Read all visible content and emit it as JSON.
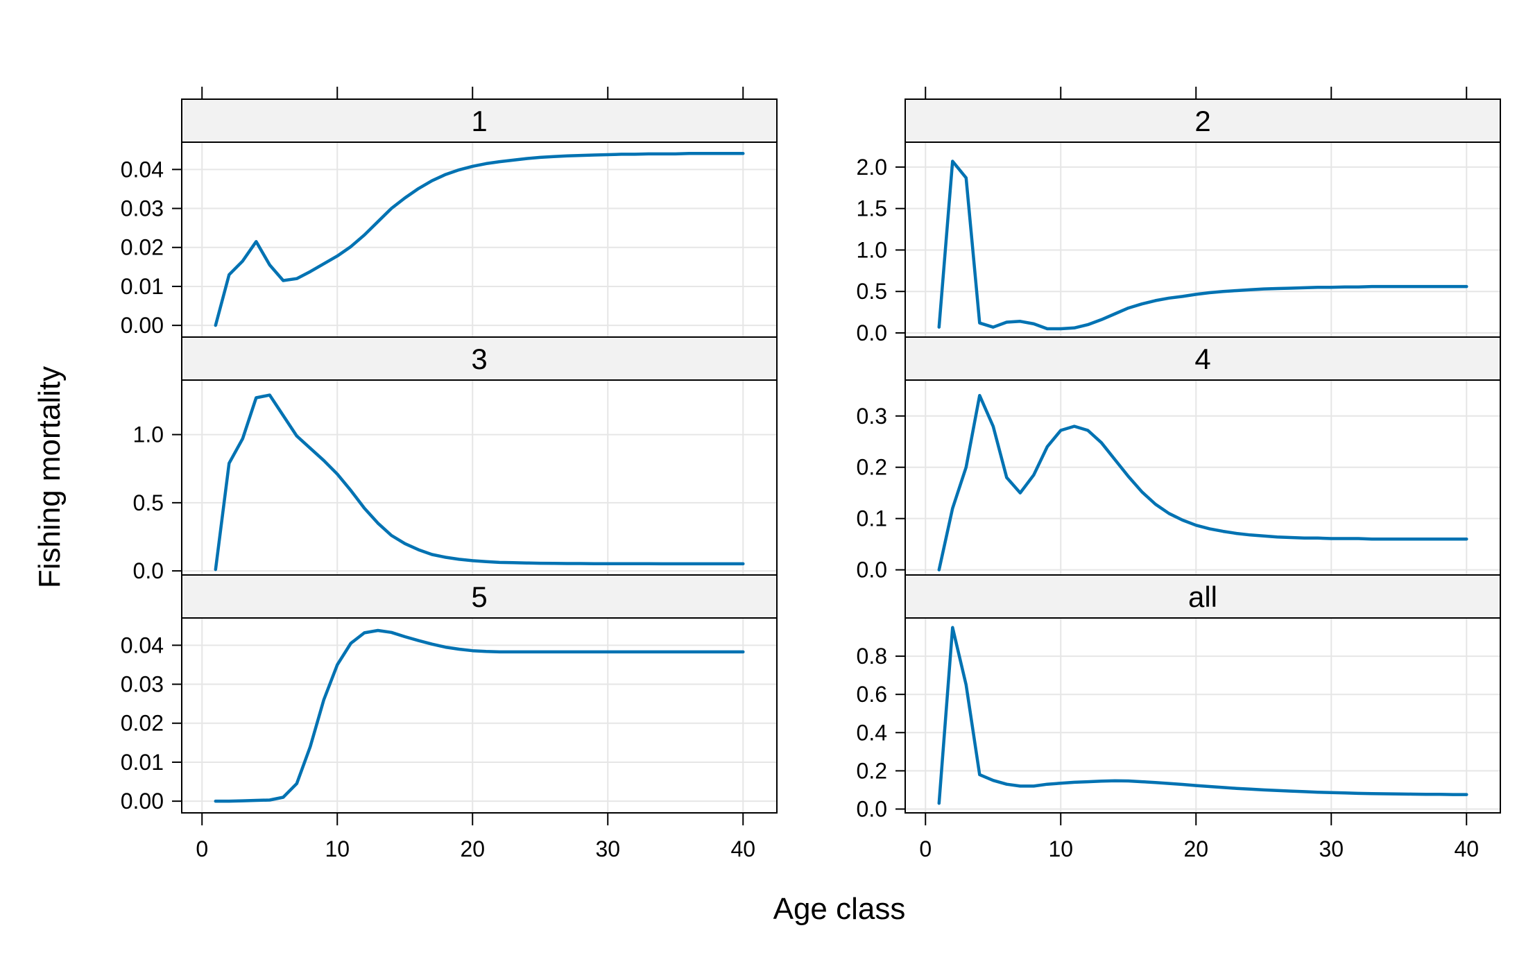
{
  "chart_data": {
    "type": "line",
    "layout": "lattice 2 columns x 3 rows",
    "xlabel": "Age class",
    "ylabel": "Fishing mortality",
    "xlim": [
      -1.5,
      42.5
    ],
    "x_ticks": [
      0,
      10,
      20,
      30,
      40
    ],
    "grid": true,
    "line_color": "#0072B2",
    "grid_color": "#e6e6e6",
    "strip_color": "#f2f2f2",
    "panels": [
      {
        "strip": "1",
        "ylim": [
          -0.003,
          0.047
        ],
        "y_ticks": [
          0.0,
          0.01,
          0.02,
          0.03,
          0.04
        ],
        "y_tick_labels": [
          "0.00",
          "0.01",
          "0.02",
          "0.03",
          "0.04"
        ],
        "x": [
          1,
          2,
          3,
          4,
          5,
          6,
          7,
          8,
          9,
          10,
          11,
          12,
          13,
          14,
          15,
          16,
          17,
          18,
          19,
          20,
          21,
          22,
          23,
          24,
          25,
          26,
          27,
          28,
          29,
          30,
          31,
          32,
          33,
          34,
          35,
          36,
          37,
          38,
          39,
          40
        ],
        "y": [
          0.0,
          0.013,
          0.0165,
          0.0215,
          0.0155,
          0.0115,
          0.012,
          0.0138,
          0.0158,
          0.0178,
          0.0202,
          0.0232,
          0.0266,
          0.03,
          0.0327,
          0.0351,
          0.0371,
          0.0387,
          0.0399,
          0.0408,
          0.0415,
          0.042,
          0.0424,
          0.0428,
          0.0431,
          0.0433,
          0.0435,
          0.0436,
          0.0437,
          0.0438,
          0.0439,
          0.0439,
          0.044,
          0.044,
          0.044,
          0.0441,
          0.0441,
          0.0441,
          0.0441,
          0.0441
        ]
      },
      {
        "strip": "2",
        "ylim": [
          -0.05,
          2.3
        ],
        "y_ticks": [
          0.0,
          0.5,
          1.0,
          1.5,
          2.0
        ],
        "y_tick_labels": [
          "0.0",
          "0.5",
          "1.0",
          "1.5",
          "2.0"
        ],
        "x": [
          1,
          2,
          3,
          4,
          5,
          6,
          7,
          8,
          9,
          10,
          11,
          12,
          13,
          14,
          15,
          16,
          17,
          18,
          19,
          20,
          21,
          22,
          23,
          24,
          25,
          26,
          27,
          28,
          29,
          30,
          31,
          32,
          33,
          34,
          35,
          36,
          37,
          38,
          39,
          40
        ],
        "y": [
          0.07,
          2.07,
          1.87,
          0.12,
          0.07,
          0.13,
          0.14,
          0.11,
          0.05,
          0.05,
          0.06,
          0.1,
          0.16,
          0.23,
          0.3,
          0.35,
          0.39,
          0.42,
          0.44,
          0.465,
          0.485,
          0.5,
          0.51,
          0.52,
          0.53,
          0.535,
          0.54,
          0.545,
          0.55,
          0.55,
          0.555,
          0.555,
          0.56,
          0.56,
          0.56,
          0.56,
          0.56,
          0.56,
          0.56,
          0.56
        ]
      },
      {
        "strip": "3",
        "ylim": [
          -0.03,
          1.4
        ],
        "y_ticks": [
          0.0,
          0.5,
          1.0
        ],
        "y_tick_labels": [
          "0.0",
          "0.5",
          "1.0"
        ],
        "x": [
          1,
          2,
          3,
          4,
          5,
          6,
          7,
          8,
          9,
          10,
          11,
          12,
          13,
          14,
          15,
          16,
          17,
          18,
          19,
          20,
          21,
          22,
          23,
          24,
          25,
          26,
          27,
          28,
          29,
          30,
          31,
          32,
          33,
          34,
          35,
          36,
          37,
          38,
          39,
          40
        ],
        "y": [
          0.01,
          0.79,
          0.97,
          1.27,
          1.29,
          1.14,
          0.99,
          0.9,
          0.81,
          0.71,
          0.59,
          0.46,
          0.35,
          0.26,
          0.2,
          0.155,
          0.12,
          0.1,
          0.085,
          0.075,
          0.068,
          0.062,
          0.06,
          0.058,
          0.056,
          0.055,
          0.054,
          0.054,
          0.053,
          0.053,
          0.053,
          0.053,
          0.053,
          0.052,
          0.052,
          0.052,
          0.052,
          0.052,
          0.052,
          0.052
        ]
      },
      {
        "strip": "4",
        "ylim": [
          -0.01,
          0.37
        ],
        "y_ticks": [
          0.0,
          0.1,
          0.2,
          0.3
        ],
        "y_tick_labels": [
          "0.0",
          "0.1",
          "0.2",
          "0.3"
        ],
        "x": [
          1,
          2,
          3,
          4,
          5,
          6,
          7,
          8,
          9,
          10,
          11,
          12,
          13,
          14,
          15,
          16,
          17,
          18,
          19,
          20,
          21,
          22,
          23,
          24,
          25,
          26,
          27,
          28,
          29,
          30,
          31,
          32,
          33,
          34,
          35,
          36,
          37,
          38,
          39,
          40
        ],
        "y": [
          0.0,
          0.12,
          0.2,
          0.34,
          0.28,
          0.18,
          0.15,
          0.185,
          0.24,
          0.272,
          0.28,
          0.272,
          0.248,
          0.215,
          0.182,
          0.152,
          0.128,
          0.11,
          0.097,
          0.087,
          0.08,
          0.075,
          0.071,
          0.068,
          0.066,
          0.064,
          0.063,
          0.062,
          0.062,
          0.061,
          0.061,
          0.061,
          0.06,
          0.06,
          0.06,
          0.06,
          0.06,
          0.06,
          0.06,
          0.06
        ]
      },
      {
        "strip": "5",
        "ylim": [
          -0.003,
          0.047
        ],
        "y_ticks": [
          0.0,
          0.01,
          0.02,
          0.03,
          0.04
        ],
        "y_tick_labels": [
          "0.00",
          "0.01",
          "0.02",
          "0.03",
          "0.04"
        ],
        "x": [
          1,
          2,
          3,
          4,
          5,
          6,
          7,
          8,
          9,
          10,
          11,
          12,
          13,
          14,
          15,
          16,
          17,
          18,
          19,
          20,
          21,
          22,
          23,
          24,
          25,
          26,
          27,
          28,
          29,
          30,
          31,
          32,
          33,
          34,
          35,
          36,
          37,
          38,
          39,
          40
        ],
        "y": [
          0.0,
          0.0,
          0.0001,
          0.0002,
          0.0003,
          0.001,
          0.0045,
          0.014,
          0.026,
          0.035,
          0.0405,
          0.0432,
          0.0438,
          0.0433,
          0.0422,
          0.0412,
          0.0403,
          0.0395,
          0.039,
          0.0386,
          0.0384,
          0.0383,
          0.0383,
          0.0383,
          0.0383,
          0.0383,
          0.0383,
          0.0383,
          0.0383,
          0.0383,
          0.0383,
          0.0383,
          0.0383,
          0.0383,
          0.0383,
          0.0383,
          0.0383,
          0.0383,
          0.0383,
          0.0383
        ]
      },
      {
        "strip": "all",
        "ylim": [
          -0.02,
          1.0
        ],
        "y_ticks": [
          0.0,
          0.2,
          0.4,
          0.6,
          0.8
        ],
        "y_tick_labels": [
          "0.0",
          "0.2",
          "0.4",
          "0.6",
          "0.8"
        ],
        "x": [
          1,
          2,
          3,
          4,
          5,
          6,
          7,
          8,
          9,
          10,
          11,
          12,
          13,
          14,
          15,
          16,
          17,
          18,
          19,
          20,
          21,
          22,
          23,
          24,
          25,
          26,
          27,
          28,
          29,
          30,
          31,
          32,
          33,
          34,
          35,
          36,
          37,
          38,
          39,
          40
        ],
        "y": [
          0.03,
          0.95,
          0.65,
          0.18,
          0.15,
          0.13,
          0.12,
          0.12,
          0.13,
          0.135,
          0.14,
          0.143,
          0.146,
          0.148,
          0.147,
          0.143,
          0.139,
          0.134,
          0.129,
          0.123,
          0.118,
          0.113,
          0.108,
          0.104,
          0.1,
          0.097,
          0.094,
          0.091,
          0.088,
          0.086,
          0.084,
          0.082,
          0.081,
          0.08,
          0.079,
          0.078,
          0.077,
          0.077,
          0.076,
          0.076
        ]
      }
    ]
  }
}
